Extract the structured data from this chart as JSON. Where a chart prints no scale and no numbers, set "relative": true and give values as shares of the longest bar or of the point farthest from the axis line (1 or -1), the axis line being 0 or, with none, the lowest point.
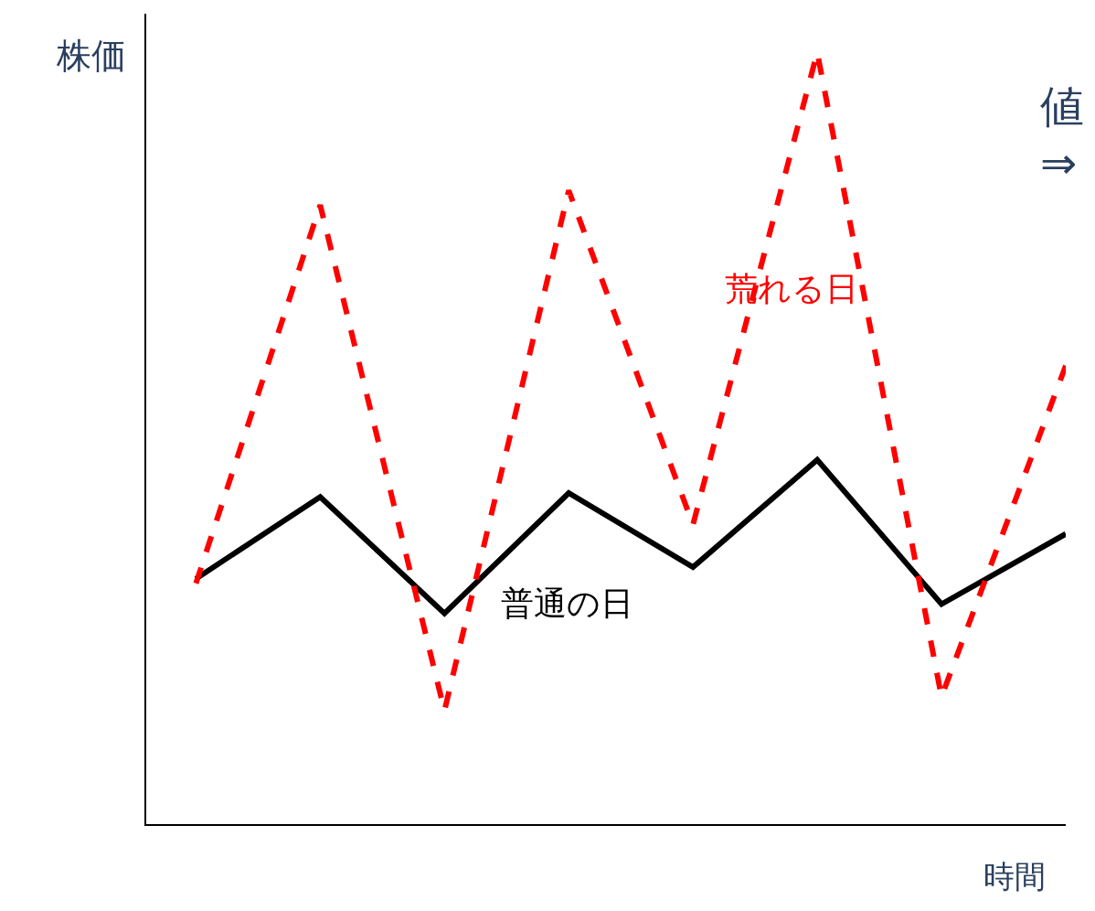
{
  "chart_data": {
    "type": "line",
    "relative": true,
    "xlabel": "時間",
    "ylabel": "株価",
    "categories": [
      null,
      null,
      null,
      null,
      null,
      null,
      null,
      null
    ],
    "series": [
      {
        "name": "普通の日",
        "color": "#000000",
        "values": [
          0.318,
          0.424,
          0.273,
          0.429,
          0.333,
          0.472,
          0.285,
          0.376
        ]
      },
      {
        "name": "荒れる日",
        "color": "#ff0000",
        "line_style": "dashed",
        "values": [
          0.312,
          0.802,
          0.147,
          0.821,
          0.388,
          1.0,
          0.165,
          0.594
        ]
      }
    ],
    "annotations": [
      "値",
      "⇒"
    ],
    "legend": false
  }
}
